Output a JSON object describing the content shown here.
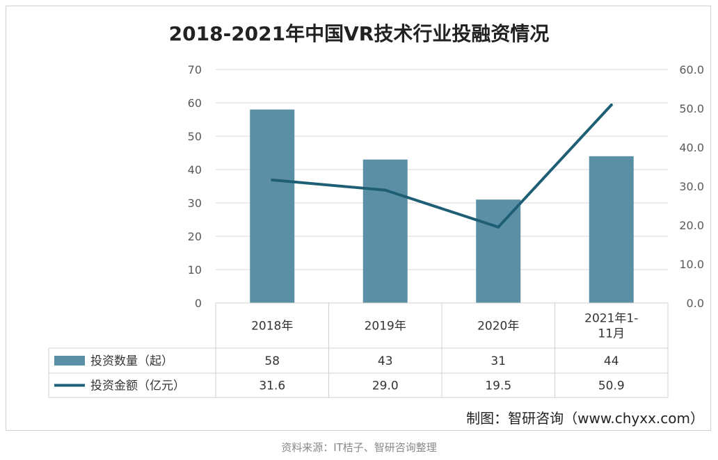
{
  "title": "2018-2021年中国VR技术行业投融资情况",
  "chart_data": {
    "type": "bar",
    "categories": [
      "2018年",
      "2019年",
      "2020年",
      "2021年1-11月"
    ],
    "category_lines": [
      [
        "2018年"
      ],
      [
        "2019年"
      ],
      [
        "2020年"
      ],
      [
        "2021年1-",
        "11月"
      ]
    ],
    "series": [
      {
        "name": "投资数量（起）",
        "type": "bar",
        "axis": "left",
        "values": [
          58,
          43,
          31,
          44
        ],
        "labels": [
          "58",
          "43",
          "31",
          "44"
        ],
        "color": "#5b8fa5"
      },
      {
        "name": "投资金额（亿元）",
        "type": "line",
        "axis": "right",
        "values": [
          31.6,
          29.0,
          19.5,
          50.9
        ],
        "labels": [
          "31.6",
          "29.0",
          "19.5",
          "50.9"
        ],
        "color": "#1f5f75"
      }
    ],
    "y_left": {
      "min": 0,
      "max": 70,
      "ticks": [
        "0",
        "10",
        "20",
        "30",
        "40",
        "50",
        "60",
        "70"
      ]
    },
    "y_right": {
      "min": 0,
      "max": 60,
      "ticks": [
        "0.0",
        "10.0",
        "20.0",
        "30.0",
        "40.0",
        "50.0",
        "60.0"
      ]
    },
    "grid": true,
    "legend": "data-table"
  },
  "credit": "制图：智研咨询（www.chyxx.com）",
  "source": "资料来源：IT桔子、智研咨询整理",
  "colors": {
    "grid": "#d9d9d9",
    "bar": "#5b8fa5",
    "line": "#1f5f75",
    "table_border": "#d0d0d0"
  }
}
